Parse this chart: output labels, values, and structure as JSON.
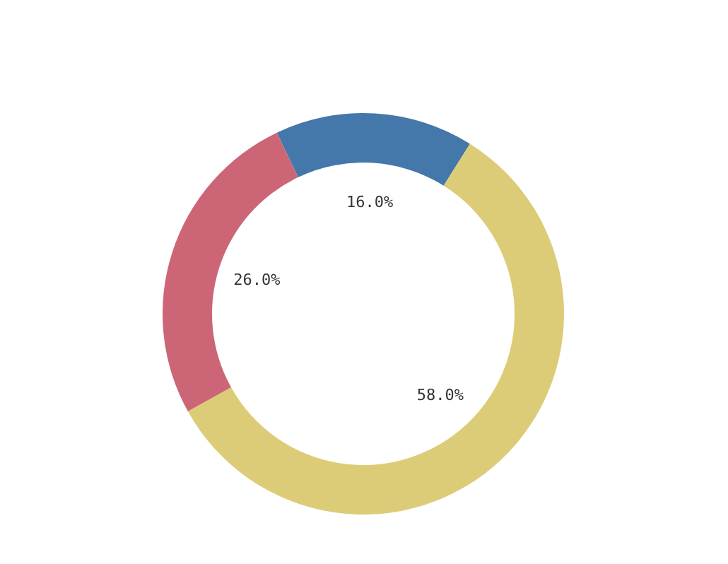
{
  "chart_data": {
    "type": "donut",
    "categories": [
      null,
      null,
      null
    ],
    "values": [
      16,
      58,
      26
    ],
    "colors": [
      "#4477aa",
      "#ddcc77",
      "#cc6677"
    ],
    "value_labels": [
      "16.0%",
      "58.0%",
      "26.0%"
    ]
  }
}
